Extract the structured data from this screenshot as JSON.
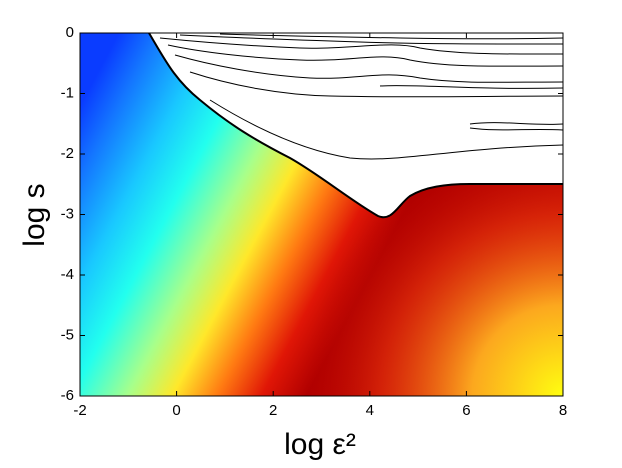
{
  "chart_data": {
    "type": "contour",
    "xlabel": "log ε²",
    "ylabel": "log s",
    "xlim": [
      -2,
      8
    ],
    "ylim": [
      -6,
      0
    ],
    "xticks": [
      -2,
      0,
      2,
      4,
      6,
      8
    ],
    "yticks": [
      -6,
      -5,
      -4,
      -3,
      -2,
      -1,
      0
    ]
  }
}
